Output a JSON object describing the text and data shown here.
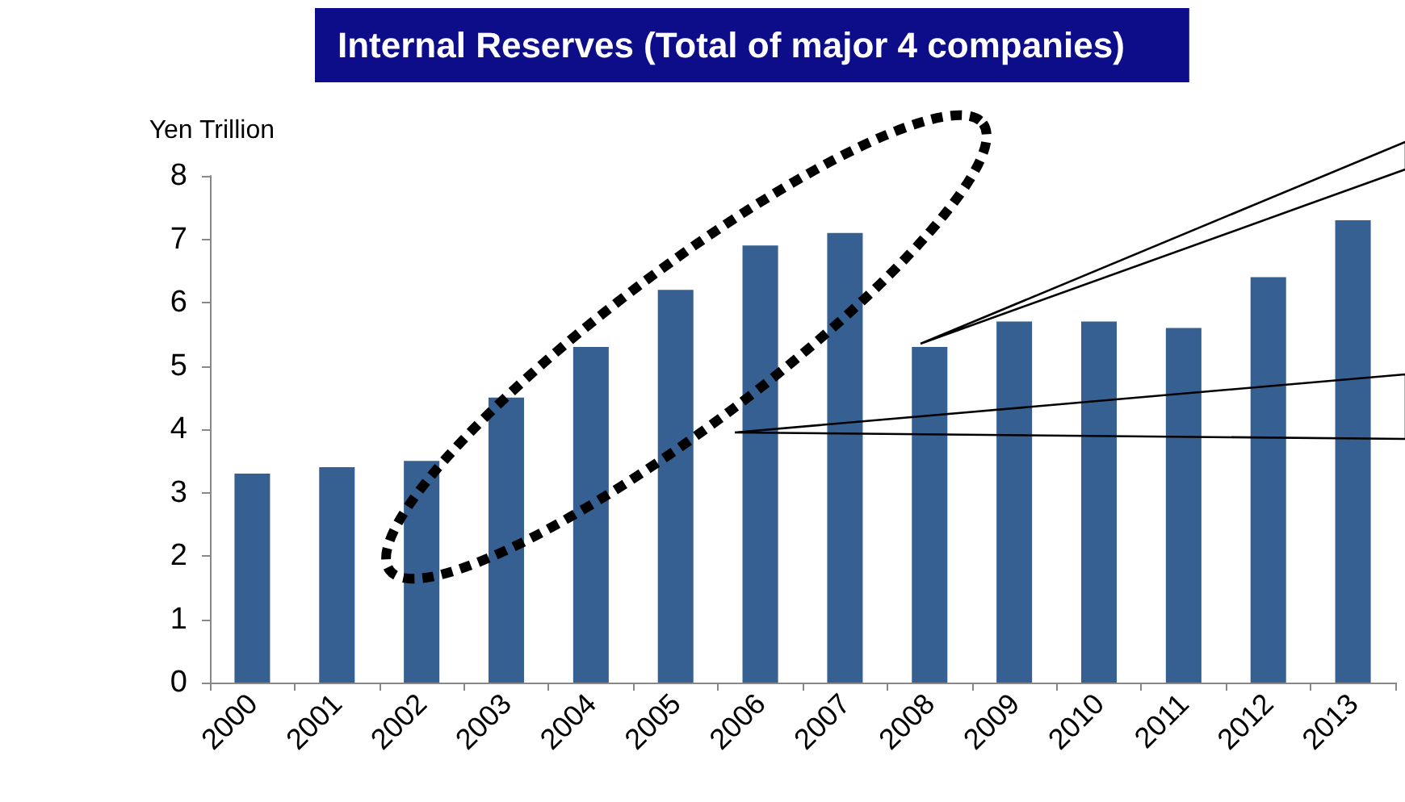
{
  "chart_data": {
    "type": "bar",
    "title": "Internal Reserves (Total of major 4 companies)",
    "ylabel": "Yen Trillion",
    "categories": [
      "2000",
      "2001",
      "2002",
      "2003",
      "2004",
      "2005",
      "2006",
      "2007",
      "2008",
      "2009",
      "2010",
      "2011",
      "2012",
      "2013"
    ],
    "values": [
      3.3,
      3.4,
      3.5,
      4.5,
      5.3,
      6.2,
      6.9,
      7.1,
      5.3,
      5.7,
      5.7,
      5.6,
      6.4,
      7.3
    ],
    "color": "#376092",
    "ylim": [
      0,
      8
    ],
    "yticks": [
      0,
      1,
      2,
      3,
      4,
      5,
      6,
      7,
      8
    ],
    "grid": false
  }
}
